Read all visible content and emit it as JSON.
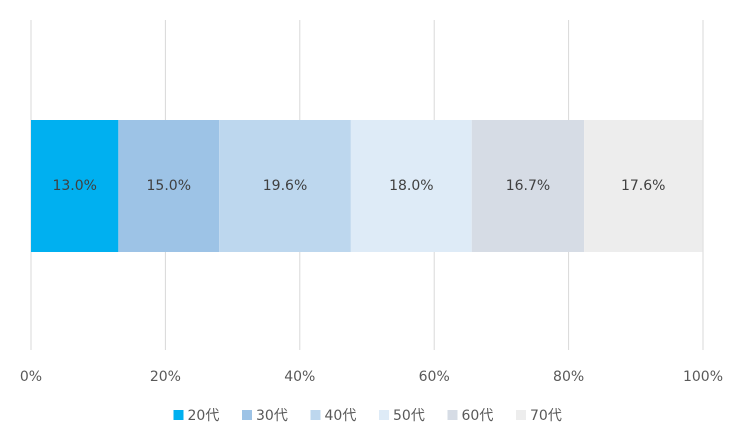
{
  "chart_data": {
    "type": "stacked_barh",
    "categories": [
      null
    ],
    "series": [
      {
        "name": "20代",
        "color": "#00b0f0",
        "values": [
          13.0
        ],
        "value_labels": [
          "13.0%"
        ]
      },
      {
        "name": "30代",
        "color": "#9dc3e6",
        "values": [
          15.0
        ],
        "value_labels": [
          "15.0%"
        ]
      },
      {
        "name": "40代",
        "color": "#bdd7ee",
        "values": [
          19.6
        ],
        "value_labels": [
          "19.6%"
        ]
      },
      {
        "name": "50代",
        "color": "#deebf7",
        "values": [
          18.0
        ],
        "value_labels": [
          "18.0%"
        ]
      },
      {
        "name": "60代",
        "color": "#d6dce5",
        "values": [
          16.7
        ],
        "value_labels": [
          "16.7%"
        ]
      },
      {
        "name": "70代",
        "color": "#ededed",
        "values": [
          17.6
        ],
        "value_labels": [
          "17.6%"
        ]
      }
    ],
    "xlim": [
      0,
      100
    ],
    "xticks": [
      {
        "value": 0,
        "label": "0%"
      },
      {
        "value": 20,
        "label": "20%"
      },
      {
        "value": 40,
        "label": "40%"
      },
      {
        "value": 60,
        "label": "60%"
      },
      {
        "value": 80,
        "label": "80%"
      },
      {
        "value": 100,
        "label": "100%"
      }
    ],
    "grid": true,
    "legend": "bottom"
  }
}
